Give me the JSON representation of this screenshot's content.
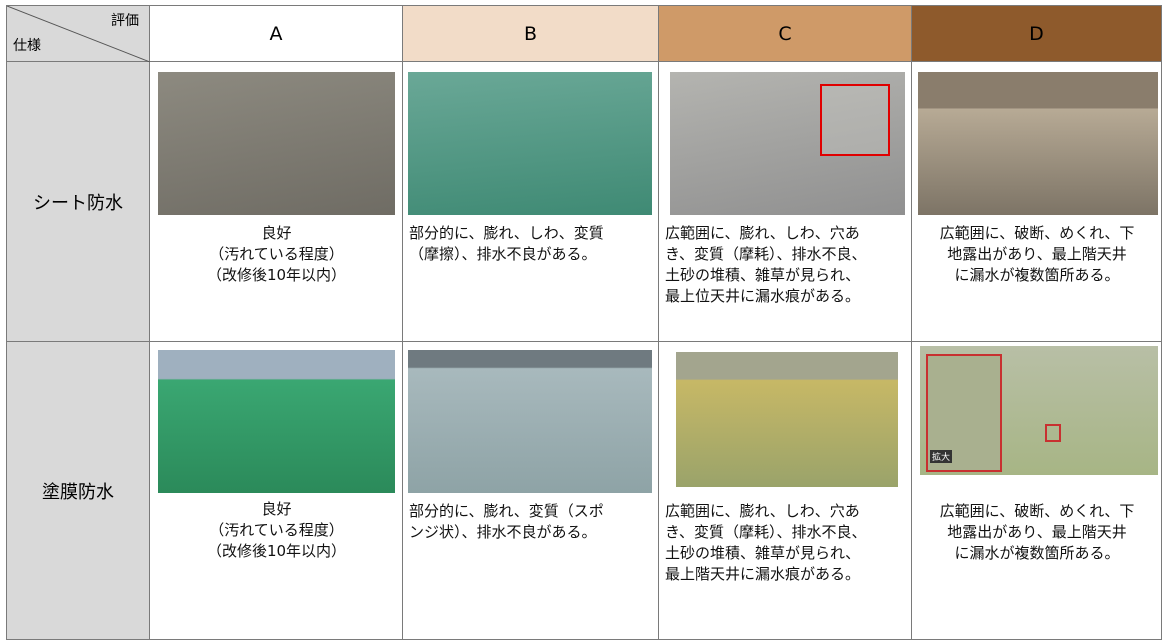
{
  "table": {
    "corner": {
      "col_label": "評価",
      "row_label": "仕様"
    },
    "columns": [
      "A",
      "B",
      "C",
      "D"
    ],
    "rows": [
      {
        "label": "シート防水",
        "cells": [
          {
            "lines": [
              "良好",
              "（汚れている程度）",
              "（改修後10年以内）"
            ]
          },
          {
            "lines": [
              "部分的に、膨れ、しわ、変質",
              "（摩擦）、排水不良がある。"
            ]
          },
          {
            "lines": [
              "広範囲に、膨れ、しわ、穴あ",
              "き、変質（摩耗）、排水不良、",
              "土砂の堆積、雑草が見られ、",
              "最上位天井に漏水痕がある。"
            ]
          },
          {
            "lines": [
              "広範囲に、破断、めくれ、下",
              "地露出があり、最上階天井",
              "に漏水が複数箇所ある。"
            ]
          }
        ]
      },
      {
        "label": "塗膜防水",
        "cells": [
          {
            "lines": [
              "良好",
              "（汚れている程度）",
              "（改修後10年以内）"
            ]
          },
          {
            "lines": [
              "部分的に、膨れ、変質（スポ",
              "ンジ状）、排水不良がある。"
            ]
          },
          {
            "lines": [
              "広範囲に、膨れ、しわ、穴あ",
              "き、変質（摩耗）、排水不良、",
              "土砂の堆積、雑草が見られ、",
              "最上階天井に漏水痕がある。"
            ]
          },
          {
            "lines": [
              "広範囲に、破断、めくれ、下",
              "地露出があり、最上階天井",
              "に漏水が複数箇所ある。"
            ]
          }
        ]
      }
    ],
    "zoom_label": "拡大"
  }
}
